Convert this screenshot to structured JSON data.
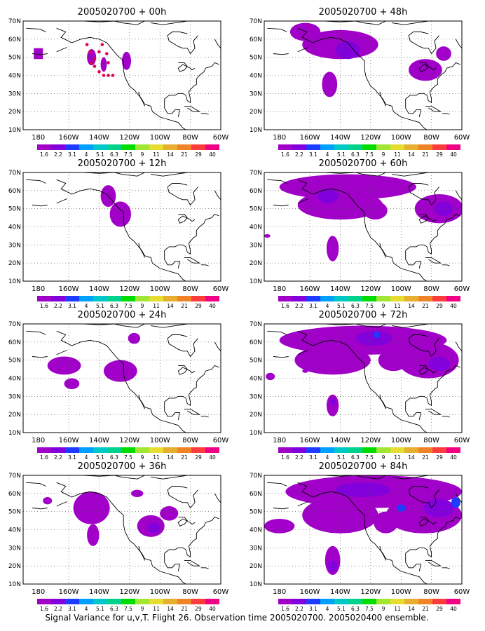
{
  "figure": {
    "caption": "Signal Variance for u,v,T. Flight 26. Observation time 2005020700. 2005020400 ensemble."
  },
  "colorbar": {
    "labels": [
      "1.6",
      "2.2",
      "3.1",
      "4",
      "5.1",
      "6.3",
      "7.5",
      "9",
      "11",
      "14",
      "21",
      "29",
      "40"
    ],
    "colors": [
      "#a000c8",
      "#8200dc",
      "#1e3cff",
      "#00a0ff",
      "#00c8c8",
      "#00d28c",
      "#00dc00",
      "#a0e632",
      "#e6dc32",
      "#e6af2d",
      "#f08228",
      "#fa3c3c",
      "#f00082"
    ]
  },
  "chart_data": [
    {
      "type": "heatmap",
      "title": "2005020700 + 00h",
      "xticks": [
        "180",
        "160W",
        "140W",
        "120W",
        "100W",
        "80W",
        "60W"
      ],
      "yticks": [
        "10N",
        "20N",
        "30N",
        "40N",
        "50N",
        "60N",
        "70N"
      ],
      "xlim": [
        -190,
        -60
      ],
      "ylim": [
        10,
        70
      ],
      "regions": [
        {
          "kind": "box",
          "lon": [
            -183,
            -177
          ],
          "lat": [
            49,
            55
          ],
          "level": "1.6"
        },
        {
          "kind": "ellipse",
          "lon": -145,
          "lat": 50,
          "rlon": 3,
          "rlat": 4.5,
          "level": "1.6"
        },
        {
          "kind": "ellipse",
          "lon": -137,
          "lat": 46,
          "rlon": 2,
          "rlat": 4,
          "level": "1.6"
        },
        {
          "kind": "ellipse",
          "lon": -122,
          "lat": 48,
          "rlon": 3,
          "rlat": 5,
          "level": "1.6"
        }
      ],
      "dots": [
        [
          -148,
          57
        ],
        [
          -146,
          53
        ],
        [
          -143,
          49
        ],
        [
          -145,
          47
        ],
        [
          -143,
          45
        ],
        [
          -140,
          42
        ],
        [
          -137,
          40
        ],
        [
          -134,
          40
        ],
        [
          -131,
          40
        ],
        [
          -138,
          57
        ],
        [
          -135,
          52
        ],
        [
          -134,
          47
        ],
        [
          -140,
          53
        ]
      ]
    },
    {
      "type": "heatmap",
      "title": "2005020700 + 12h",
      "xticks": [
        "180",
        "160W",
        "140W",
        "120W",
        "100W",
        "80W",
        "60W"
      ],
      "yticks": [
        "10N",
        "20N",
        "30N",
        "40N",
        "50N",
        "60N",
        "70N"
      ],
      "xlim": [
        -190,
        -60
      ],
      "ylim": [
        10,
        70
      ],
      "regions": [
        {
          "kind": "ellipse",
          "lon": -134,
          "lat": 57,
          "rlon": 5,
          "rlat": 6,
          "level": "1.6"
        },
        {
          "kind": "ellipse",
          "lon": -126,
          "lat": 47,
          "rlon": 7,
          "rlat": 7,
          "level": "1.6"
        }
      ]
    },
    {
      "type": "heatmap",
      "title": "2005020700 + 24h",
      "xticks": [
        "180",
        "160W",
        "140W",
        "120W",
        "100W",
        "80W",
        "60W"
      ],
      "yticks": [
        "10N",
        "20N",
        "30N",
        "40N",
        "50N",
        "60N",
        "70N"
      ],
      "xlim": [
        -190,
        -60
      ],
      "ylim": [
        10,
        70
      ],
      "regions": [
        {
          "kind": "ellipse",
          "lon": -163,
          "lat": 47,
          "rlon": 11,
          "rlat": 5,
          "level": "1.6"
        },
        {
          "kind": "ellipse",
          "lon": -158,
          "lat": 37,
          "rlon": 5,
          "rlat": 3,
          "level": "1.6"
        },
        {
          "kind": "ellipse",
          "lon": -126,
          "lat": 44,
          "rlon": 11,
          "rlat": 6,
          "level": "1.6"
        },
        {
          "kind": "ellipse",
          "lon": -117,
          "lat": 62,
          "rlon": 4,
          "rlat": 3,
          "level": "1.6"
        }
      ]
    },
    {
      "type": "heatmap",
      "title": "2005020700 + 36h",
      "xticks": [
        "180",
        "160W",
        "140W",
        "120W",
        "100W",
        "80W",
        "60W"
      ],
      "yticks": [
        "10N",
        "20N",
        "30N",
        "40N",
        "50N",
        "60N",
        "70N"
      ],
      "xlim": [
        -190,
        -60
      ],
      "ylim": [
        10,
        70
      ],
      "regions": [
        {
          "kind": "ellipse",
          "lon": -145,
          "lat": 52,
          "rlon": 12,
          "rlat": 9,
          "level": "1.6"
        },
        {
          "kind": "ellipse",
          "lon": -144,
          "lat": 37,
          "rlon": 4,
          "rlat": 6,
          "level": "1.6"
        },
        {
          "kind": "ellipse",
          "lon": -174,
          "lat": 56,
          "rlon": 3,
          "rlat": 2,
          "level": "1.6"
        },
        {
          "kind": "ellipse",
          "lon": -106,
          "lat": 42,
          "rlon": 9,
          "rlat": 6,
          "level": "1.6"
        },
        {
          "kind": "ellipse",
          "lon": -94,
          "lat": 49,
          "rlon": 6,
          "rlat": 4,
          "level": "1.6"
        },
        {
          "kind": "ellipse",
          "lon": -104,
          "lat": 41,
          "rlon": 4,
          "rlat": 3,
          "level": "2.2"
        },
        {
          "kind": "ellipse",
          "lon": -115,
          "lat": 60,
          "rlon": 4,
          "rlat": 2,
          "level": "1.6"
        }
      ]
    },
    {
      "type": "heatmap",
      "title": "2005020700 + 48h",
      "xticks": [
        "180",
        "160W",
        "140W",
        "120W",
        "100W",
        "80W",
        "60W"
      ],
      "yticks": [
        "10N",
        "20N",
        "30N",
        "40N",
        "50N",
        "60N",
        "70N"
      ],
      "xlim": [
        -190,
        -60
      ],
      "ylim": [
        10,
        70
      ],
      "regions": [
        {
          "kind": "ellipse",
          "lon": -140,
          "lat": 57,
          "rlon": 25,
          "rlat": 8,
          "level": "1.6"
        },
        {
          "kind": "ellipse",
          "lon": -163,
          "lat": 64,
          "rlon": 10,
          "rlat": 5,
          "level": "1.6"
        },
        {
          "kind": "ellipse",
          "lon": -147,
          "lat": 35,
          "rlon": 5,
          "rlat": 7,
          "level": "1.6"
        },
        {
          "kind": "ellipse",
          "lon": -135,
          "lat": 54,
          "rlon": 8,
          "rlat": 5,
          "level": "2.2"
        },
        {
          "kind": "ellipse",
          "lon": -84,
          "lat": 43,
          "rlon": 11,
          "rlat": 6,
          "level": "1.6"
        },
        {
          "kind": "ellipse",
          "lon": -72,
          "lat": 52,
          "rlon": 5,
          "rlat": 4,
          "level": "1.6"
        }
      ]
    },
    {
      "type": "heatmap",
      "title": "2005020700 + 60h",
      "xticks": [
        "180",
        "160W",
        "140W",
        "120W",
        "100W",
        "80W",
        "60W"
      ],
      "yticks": [
        "10N",
        "20N",
        "30N",
        "40N",
        "50N",
        "60N",
        "70N"
      ],
      "xlim": [
        -190,
        -60
      ],
      "ylim": [
        10,
        70
      ],
      "regions": [
        {
          "kind": "ellipse",
          "lon": -135,
          "lat": 62,
          "rlon": 45,
          "rlat": 7,
          "level": "1.6"
        },
        {
          "kind": "ellipse",
          "lon": -140,
          "lat": 52,
          "rlon": 28,
          "rlat": 8,
          "level": "1.6"
        },
        {
          "kind": "ellipse",
          "lon": -117,
          "lat": 49,
          "rlon": 8,
          "rlat": 5,
          "level": "1.6"
        },
        {
          "kind": "ellipse",
          "lon": -75,
          "lat": 50,
          "rlon": 16,
          "rlat": 8,
          "level": "1.6"
        },
        {
          "kind": "ellipse",
          "lon": -145,
          "lat": 28,
          "rlon": 4,
          "rlat": 7,
          "level": "1.6"
        },
        {
          "kind": "ellipse",
          "lon": -188,
          "lat": 35,
          "rlon": 2,
          "rlat": 1,
          "level": "1.6"
        },
        {
          "kind": "ellipse",
          "lon": -148,
          "lat": 57,
          "rlon": 7,
          "rlat": 4,
          "level": "2.2"
        },
        {
          "kind": "ellipse",
          "lon": -72,
          "lat": 50,
          "rlon": 6,
          "rlat": 4,
          "level": "2.2"
        }
      ]
    },
    {
      "type": "heatmap",
      "title": "2005020700 + 72h",
      "xticks": [
        "180",
        "160W",
        "140W",
        "120W",
        "100W",
        "80W",
        "60W"
      ],
      "yticks": [
        "10N",
        "20N",
        "30N",
        "40N",
        "50N",
        "60N",
        "70N"
      ],
      "xlim": [
        -190,
        -60
      ],
      "ylim": [
        10,
        70
      ],
      "regions": [
        {
          "kind": "ellipse",
          "lon": -125,
          "lat": 61,
          "rlon": 55,
          "rlat": 8,
          "level": "1.6"
        },
        {
          "kind": "ellipse",
          "lon": -145,
          "lat": 50,
          "rlon": 25,
          "rlat": 8,
          "level": "1.6"
        },
        {
          "kind": "ellipse",
          "lon": -82,
          "lat": 50,
          "rlon": 20,
          "rlat": 10,
          "level": "1.6"
        },
        {
          "kind": "ellipse",
          "lon": -105,
          "lat": 50,
          "rlon": 10,
          "rlat": 6,
          "level": "1.6"
        },
        {
          "kind": "ellipse",
          "lon": -145,
          "lat": 25,
          "rlon": 4,
          "rlat": 6,
          "level": "1.6"
        },
        {
          "kind": "ellipse",
          "lon": -186,
          "lat": 41,
          "rlon": 3,
          "rlat": 2,
          "level": "1.6"
        },
        {
          "kind": "ellipse",
          "lon": -163,
          "lat": 44,
          "rlon": 2,
          "rlat": 1,
          "level": "1.6"
        },
        {
          "kind": "ellipse",
          "lon": -118,
          "lat": 62,
          "rlon": 12,
          "rlat": 4,
          "level": "2.2"
        },
        {
          "kind": "ellipse",
          "lon": -75,
          "lat": 48,
          "rlon": 7,
          "rlat": 4,
          "level": "2.2"
        },
        {
          "kind": "ellipse",
          "lon": -145,
          "lat": 27,
          "rlon": 2,
          "rlat": 2,
          "level": "2.2"
        },
        {
          "kind": "ellipse",
          "lon": -116,
          "lat": 64,
          "rlon": 2,
          "rlat": 2,
          "level": "3.1"
        }
      ]
    },
    {
      "type": "heatmap",
      "title": "2005020700 + 84h",
      "xticks": [
        "180",
        "160W",
        "140W",
        "120W",
        "100W",
        "80W",
        "60W"
      ],
      "yticks": [
        "10N",
        "20N",
        "30N",
        "40N",
        "50N",
        "60N",
        "70N"
      ],
      "xlim": [
        -190,
        -60
      ],
      "ylim": [
        10,
        70
      ],
      "regions": [
        {
          "kind": "ellipse",
          "lon": -118,
          "lat": 61,
          "rlon": 58,
          "rlat": 9,
          "level": "1.6"
        },
        {
          "kind": "ellipse",
          "lon": -140,
          "lat": 48,
          "rlon": 25,
          "rlat": 10,
          "level": "1.6"
        },
        {
          "kind": "ellipse",
          "lon": -85,
          "lat": 48,
          "rlon": 25,
          "rlat": 10,
          "level": "1.6"
        },
        {
          "kind": "ellipse",
          "lon": -180,
          "lat": 42,
          "rlon": 10,
          "rlat": 4,
          "level": "1.6"
        },
        {
          "kind": "ellipse",
          "lon": -145,
          "lat": 23,
          "rlon": 5,
          "rlat": 8,
          "level": "1.6"
        },
        {
          "kind": "ellipse",
          "lon": -110,
          "lat": 44,
          "rlon": 8,
          "rlat": 6,
          "level": "1.6"
        },
        {
          "kind": "ellipse",
          "lon": -125,
          "lat": 62,
          "rlon": 18,
          "rlat": 4,
          "level": "2.2"
        },
        {
          "kind": "ellipse",
          "lon": -75,
          "lat": 52,
          "rlon": 10,
          "rlat": 5,
          "level": "2.2"
        },
        {
          "kind": "ellipse",
          "lon": -145,
          "lat": 20,
          "rlon": 3,
          "rlat": 3,
          "level": "2.2"
        },
        {
          "kind": "ellipse",
          "lon": -64,
          "lat": 55,
          "rlon": 3,
          "rlat": 3,
          "level": "3.1"
        },
        {
          "kind": "ellipse",
          "lon": -100,
          "lat": 52,
          "rlon": 3,
          "rlat": 2,
          "level": "3.1"
        }
      ]
    }
  ]
}
